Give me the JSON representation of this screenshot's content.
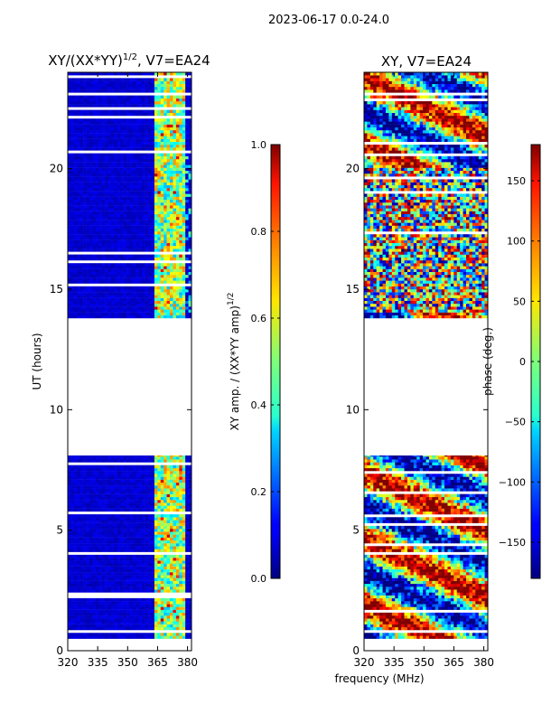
{
  "figure": {
    "suptitle": "2023-06-17 0.0-24.0",
    "shared_xlabel": "frequency (MHz)"
  },
  "chart_data": [
    {
      "type": "heatmap",
      "title": "XY/(XX*YY)",
      "title_superscript": "1/2",
      "title_suffix": ", V7=EA24",
      "xlabel": "",
      "ylabel": "UT (hours)",
      "xlim": [
        320,
        382
      ],
      "ylim": [
        0,
        24
      ],
      "xticks": [
        320,
        335,
        350,
        365,
        380
      ],
      "yticks": [
        0,
        5,
        10,
        15,
        20
      ],
      "data_coverage_hours": [
        [
          0.5,
          8.1
        ],
        [
          13.8,
          24.0
        ]
      ],
      "gap_hours": [
        8.1,
        13.8
      ],
      "bright_band_mhz": [
        363,
        379
      ],
      "colorbar": {
        "label": "XY amp. / (XX*YY amp)",
        "label_superscript": "1/2",
        "min": 0.0,
        "max": 1.0,
        "ticks": [
          "0.0",
          "0.2",
          "0.4",
          "0.6",
          "0.8",
          "1.0"
        ],
        "colormap": "jet"
      }
    },
    {
      "type": "heatmap",
      "title": "XY, V7=EA24",
      "xlabel": "frequency (MHz)",
      "ylabel": "",
      "xlim": [
        320,
        382
      ],
      "ylim": [
        0,
        24
      ],
      "xticks": [
        320,
        335,
        350,
        365,
        380
      ],
      "yticks": [
        0,
        5,
        10,
        15,
        20
      ],
      "data_coverage_hours": [
        [
          0.5,
          8.1
        ],
        [
          13.8,
          24.0
        ]
      ],
      "gap_hours": [
        8.1,
        13.8
      ],
      "colorbar": {
        "label": "phase (deg.)",
        "min": -180,
        "max": 180,
        "ticks": [
          "−150",
          "−100",
          "−50",
          "0",
          "50",
          "100",
          "150"
        ],
        "tick_values": [
          -150,
          -100,
          -50,
          0,
          50,
          100,
          150
        ],
        "colormap": "jet"
      }
    }
  ]
}
